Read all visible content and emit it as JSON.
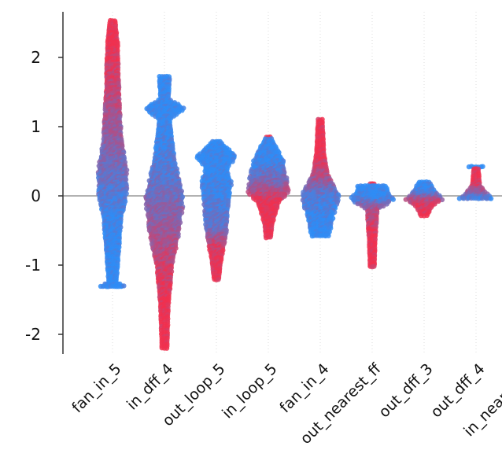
{
  "chart_data": {
    "type": "scatter",
    "subtype": "beeswarm",
    "title": "",
    "xlabel": "",
    "ylabel": "",
    "ylim": [
      -2.3,
      2.65
    ],
    "yticks": [
      2,
      1,
      0,
      -1,
      -2
    ],
    "ytick_labels": [
      "2",
      "1",
      "0",
      "-1",
      "-2"
    ],
    "zero_line": true,
    "grid": "vertical dotted per feature",
    "colors": {
      "low": "#2f8cf5",
      "high": "#f0304f",
      "zero_line": "#999999",
      "axis": "#333333"
    },
    "features": [
      {
        "name": "fan_in_5",
        "min": -1.32,
        "max": 2.53,
        "profile": [
          [
            2.53,
            0.1,
            1
          ],
          [
            2.2,
            0.2,
            1
          ],
          [
            1.5,
            0.25,
            0.75
          ],
          [
            0.8,
            0.35,
            0.5
          ],
          [
            0.4,
            0.55,
            0.35
          ],
          [
            0,
            0.55,
            0.2
          ],
          [
            -0.3,
            0.35,
            0.05
          ],
          [
            -1.0,
            0.2,
            0
          ],
          [
            -1.25,
            0.15,
            0
          ],
          [
            -1.32,
            0.6,
            0
          ]
        ]
      },
      {
        "name": "in_dff_4",
        "min": -2.2,
        "max": 1.72,
        "profile": [
          [
            1.72,
            0.2,
            0
          ],
          [
            1.4,
            0.15,
            0
          ],
          [
            1.27,
            0.8,
            0
          ],
          [
            1.1,
            0.2,
            0
          ],
          [
            0.5,
            0.4,
            0.15
          ],
          [
            0,
            0.75,
            0.35
          ],
          [
            -0.5,
            0.6,
            0.55
          ],
          [
            -1.0,
            0.3,
            0.8
          ],
          [
            -1.6,
            0.15,
            1
          ],
          [
            -2.2,
            0.1,
            1
          ]
        ]
      },
      {
        "name": "out_loop_5",
        "min": -1.22,
        "max": 0.78,
        "profile": [
          [
            0.78,
            0.15,
            0
          ],
          [
            0.57,
            0.8,
            0
          ],
          [
            0.4,
            0.4,
            0
          ],
          [
            0.2,
            0.6,
            0.05
          ],
          [
            0,
            0.5,
            0.1
          ],
          [
            -0.5,
            0.4,
            0.3
          ],
          [
            -0.7,
            0.3,
            0.8
          ],
          [
            -1.0,
            0.15,
            1
          ],
          [
            -1.22,
            0.08,
            1
          ]
        ]
      },
      {
        "name": "in_loop_5",
        "min": -0.62,
        "max": 0.85,
        "profile": [
          [
            0.85,
            0.08,
            0
          ],
          [
            0.5,
            0.6,
            0.05
          ],
          [
            0.2,
            0.75,
            0.4
          ],
          [
            0.05,
            0.8,
            0.7
          ],
          [
            -0.1,
            0.4,
            1
          ],
          [
            -0.4,
            0.15,
            1
          ],
          [
            -0.62,
            0.08,
            1
          ]
        ]
      },
      {
        "name": "fan_in_4",
        "min": -0.6,
        "max": 1.1,
        "profile": [
          [
            1.1,
            0.08,
            1
          ],
          [
            0.6,
            0.15,
            1
          ],
          [
            0.3,
            0.3,
            0.7
          ],
          [
            0,
            0.75,
            0.2
          ],
          [
            -0.3,
            0.5,
            0.05
          ],
          [
            -0.55,
            0.35,
            0
          ],
          [
            -0.6,
            0.3,
            0
          ]
        ]
      },
      {
        "name": "out_nearest_ff",
        "min": -1.05,
        "max": 0.17,
        "profile": [
          [
            0.17,
            0.55,
            0
          ],
          [
            0.05,
            0.6,
            0
          ],
          [
            -0.05,
            0.85,
            0.1
          ],
          [
            -0.2,
            0.2,
            0.6
          ],
          [
            -0.6,
            0.12,
            1
          ],
          [
            -1.05,
            0.08,
            1
          ]
        ]
      },
      {
        "name": "out_dff_3",
        "min": -0.3,
        "max": 0.2,
        "profile": [
          [
            0.2,
            0.2,
            0
          ],
          [
            0.05,
            0.45,
            0.1
          ],
          [
            -0.05,
            0.75,
            0.6
          ],
          [
            -0.15,
            0.3,
            0.9
          ],
          [
            -0.3,
            0.1,
            1
          ]
        ]
      },
      {
        "name": "out_dff_4",
        "min": -0.06,
        "max": 0.42,
        "profile": [
          [
            0.42,
            0.08,
            1
          ],
          [
            0.15,
            0.15,
            0.9
          ],
          [
            0,
            0.5,
            0.3
          ],
          [
            -0.05,
            0.75,
            0.1
          ],
          [
            -0.06,
            0.3,
            0
          ]
        ]
      },
      {
        "name": "in_nearest_ff",
        "min": -0.05,
        "max": 0.02,
        "profile": [
          [
            0.02,
            0.3,
            0
          ],
          [
            -0.02,
            0.6,
            0
          ],
          [
            -0.05,
            0.3,
            0
          ]
        ]
      }
    ]
  }
}
